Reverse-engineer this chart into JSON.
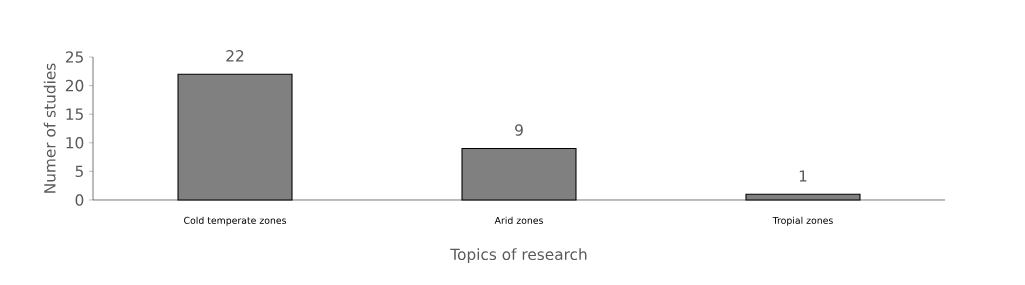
{
  "chart_data": {
    "type": "bar",
    "xlabel": "Topics of research",
    "ylabel": "Numer of studies",
    "categories": [
      "Cold temperate zones",
      "Arid zones",
      "Tropial zones"
    ],
    "values": [
      22,
      9,
      1
    ],
    "color": "#808080",
    "ylim": [
      0,
      25
    ],
    "yticks": [
      0,
      5,
      10,
      15,
      20,
      25
    ],
    "grid": false,
    "data_labels": true
  }
}
